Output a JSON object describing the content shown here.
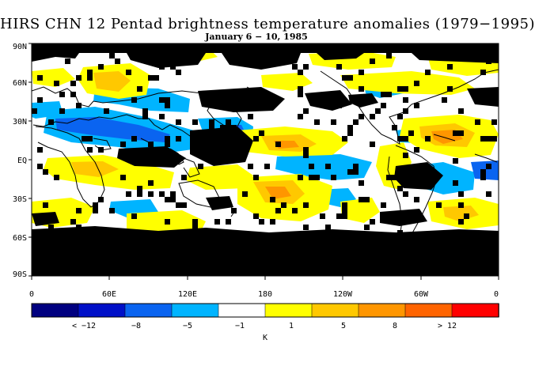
{
  "title": "HIRS CHN 12 Pentad brightness temperature anomalies (1979−1995)",
  "subtitle": "January 6 − 10, 1985",
  "axes": {
    "lat_labels": [
      "90N",
      "60N",
      "30N",
      "EQ",
      "30S",
      "60S",
      "90S"
    ],
    "lon_labels": [
      "0",
      "60E",
      "120E",
      "180",
      "120W",
      "60W",
      "0"
    ]
  },
  "colorbar": {
    "unit_label": "K",
    "colors": [
      "#000080",
      "#0010c8",
      "#0a64f0",
      "#00b4ff",
      "#ffffff",
      "#ffff00",
      "#ffc800",
      "#ff9600",
      "#ff6400",
      "#ff0000"
    ],
    "tick_labels": [
      "< −12",
      "−8",
      "−5",
      "−1",
      "1",
      "5",
      "8",
      "> 12"
    ]
  },
  "map": {
    "missing_color": "#000000",
    "coastline_color": "#000000"
  }
}
